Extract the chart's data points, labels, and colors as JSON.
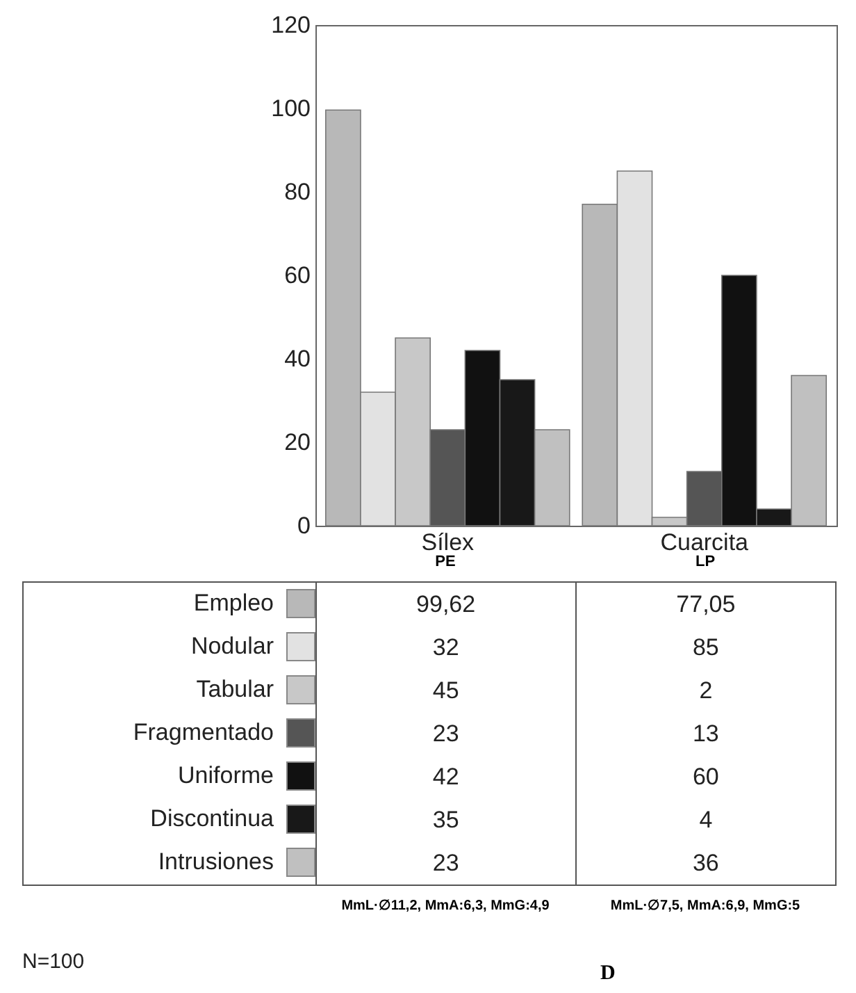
{
  "chart_data": {
    "type": "bar",
    "categories": [
      "Sílex",
      "Cuarcita"
    ],
    "series": [
      {
        "name": "Empleo",
        "color": "#b8b8b8",
        "values": [
          99.62,
          77.05
        ],
        "value_labels": [
          "99,62",
          "77,05"
        ]
      },
      {
        "name": "Nodular",
        "color": "#e2e2e2",
        "values": [
          32,
          85
        ],
        "value_labels": [
          "32",
          "85"
        ]
      },
      {
        "name": "Tabular",
        "color": "#c8c8c8",
        "values": [
          45,
          2
        ],
        "value_labels": [
          "45",
          "2"
        ]
      },
      {
        "name": "Fragmentado",
        "color": "#555555",
        "values": [
          23,
          13
        ],
        "value_labels": [
          "23",
          "13"
        ]
      },
      {
        "name": "Uniforme",
        "color": "#111111",
        "values": [
          42,
          60
        ],
        "value_labels": [
          "42",
          "60"
        ]
      },
      {
        "name": "Discontinua",
        "color": "#181818",
        "values": [
          35,
          4
        ],
        "value_labels": [
          "35",
          "4"
        ]
      },
      {
        "name": "Intrusiones",
        "color": "#c0c0c0",
        "values": [
          23,
          36
        ],
        "value_labels": [
          "23",
          "36"
        ]
      }
    ],
    "ylim": [
      0,
      120
    ],
    "yticks": [
      0,
      20,
      40,
      60,
      80,
      100,
      120
    ],
    "grid": false,
    "legend": "bottom",
    "annotations": [
      "PE",
      "LP",
      "MmL·∅11,2, MmA:6,3, MmG:4,9",
      "MmL·∅7,5, MmA:6,9, MmG:5",
      "N=100",
      "D"
    ]
  }
}
